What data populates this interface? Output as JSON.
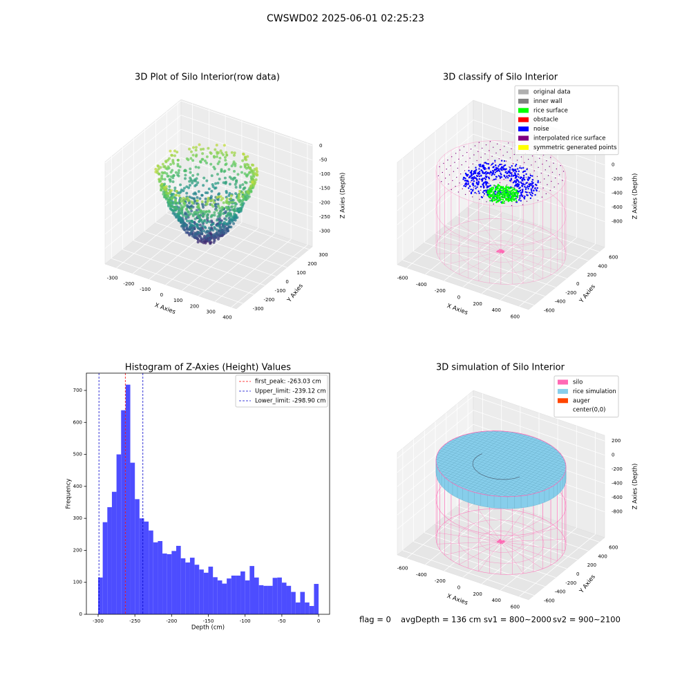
{
  "title": "CWSWD02 2025-06-01 02:25:23",
  "chart_data": [
    {
      "type": "scatter3d",
      "title": "3D Plot of Silo Interior(row data)",
      "xlabel": "X Axies",
      "ylabel": "Y Axies",
      "zlabel": "Z Axies (Depth)",
      "xlim": [
        -370,
        430
      ],
      "ylim": [
        -360,
        330
      ],
      "zlim": [
        -355,
        5
      ],
      "xticks": [
        -300,
        -200,
        -100,
        0,
        100,
        200,
        300,
        400
      ],
      "yticks": [
        -300,
        -200,
        -100,
        0,
        100,
        200,
        300
      ],
      "zticks": [
        0,
        -50,
        -100,
        -150,
        -200,
        -250,
        -300
      ]
    },
    {
      "type": "classify3d",
      "title": "3D classify of Silo Interior",
      "xlabel": "X Axies",
      "ylabel": "Y Axies",
      "zlabel": "Z Axies (Depth)",
      "xlim": [
        -700,
        700
      ],
      "ylim": [
        -700,
        700
      ],
      "zlim": [
        -1165,
        280
      ],
      "xticks": [
        -600,
        -400,
        -200,
        0,
        200,
        400,
        600
      ],
      "yticks": [
        -600,
        -400,
        -200,
        0,
        200,
        400,
        600
      ],
      "zticks": [
        0,
        -200,
        -400,
        -600,
        -800
      ],
      "series": [
        {
          "name": "original data",
          "color": "#b0b0b0"
        },
        {
          "name": "inner wall",
          "color": "#808080"
        },
        {
          "name": "rice surface",
          "color": "#00ff00"
        },
        {
          "name": "obstacle",
          "color": "#ff0000"
        },
        {
          "name": "noise",
          "color": "#0000ff"
        },
        {
          "name": "interpolated rice surface",
          "color": "#800080"
        },
        {
          "name": "symmetric generated points",
          "color": "#ffff00"
        }
      ]
    },
    {
      "type": "histogram",
      "title": "Histogram of Z-Axies (Height) Values",
      "xlabel": "Depth (cm)",
      "ylabel": "Frequency",
      "color": "#4d4dff",
      "bins": [
        -300,
        -293.75,
        -287.5,
        -281.25,
        -275,
        -268.75,
        -262.5,
        -256.25,
        -250,
        -243.75,
        -237.5,
        -231.25,
        -225,
        -218.75,
        -212.5,
        -206.25,
        -200,
        -193.75,
        -187.5,
        -181.25,
        -175,
        -168.75,
        -162.5,
        -156.25,
        -150,
        -143.75,
        -137.5,
        -131.25,
        -125,
        -118.75,
        -112.5,
        -106.25,
        -100,
        -93.75,
        -87.5,
        -81.25,
        -75,
        -68.75,
        -62.5,
        -56.25,
        -50,
        -43.75,
        -37.5,
        -31.25,
        -25,
        -18.75,
        -12.5,
        -6.25,
        0
      ],
      "values": [
        115,
        288,
        335,
        383,
        500,
        638,
        718,
        474,
        360,
        300,
        290,
        262,
        225,
        229,
        190,
        188,
        198,
        214,
        175,
        162,
        177,
        155,
        140,
        130,
        149,
        116,
        106,
        96,
        112,
        121,
        121,
        134,
        106,
        151,
        115,
        91,
        89,
        89,
        114,
        115,
        99,
        89,
        70,
        37,
        70,
        37,
        26,
        95
      ],
      "xlim": [
        -316,
        15
      ],
      "ylim": [
        0,
        754
      ],
      "xticks": [
        -300,
        -250,
        -200,
        -150,
        -100,
        -50,
        0
      ],
      "yticks": [
        0,
        100,
        200,
        300,
        400,
        500,
        600,
        700
      ],
      "lines": [
        {
          "name": "first_peak: -263.03 cm",
          "value": -263.03,
          "color": "#ff0000"
        },
        {
          "name": "Upper_limit: -239.12 cm",
          "value": -239.12,
          "color": "#0000cc"
        },
        {
          "name": "Lower_limit: -298.90 cm",
          "value": -298.9,
          "color": "#0000cc"
        }
      ],
      "legend": "upper right"
    },
    {
      "type": "simulation3d",
      "title": "3D simulation of Silo Interior",
      "xlabel": "X Axies",
      "ylabel": "Y Axies",
      "zlabel": "Z Axies (Depth)",
      "xlim": [
        -700,
        700
      ],
      "ylim": [
        -700,
        700
      ],
      "zlim": [
        -1165,
        280
      ],
      "xticks": [
        -600,
        -400,
        -200,
        0,
        200,
        400,
        600
      ],
      "yticks": [
        -600,
        -400,
        -200,
        0,
        200,
        400,
        600
      ],
      "zticks": [
        200,
        0,
        -200,
        -400,
        -600,
        -800
      ],
      "series": [
        {
          "name": "silo",
          "color": "#ff69b4"
        },
        {
          "name": "rice simulation",
          "color": "#87ceeb"
        },
        {
          "name": "auger",
          "color": "#ff4500"
        },
        {
          "name": "center(0,0)",
          "color": "#ffffff"
        }
      ],
      "annotations": [
        "flag = 0",
        "avgDepth = 136 cm",
        "sv1 = 800~2000",
        "sv2 = 900~2100"
      ]
    }
  ]
}
